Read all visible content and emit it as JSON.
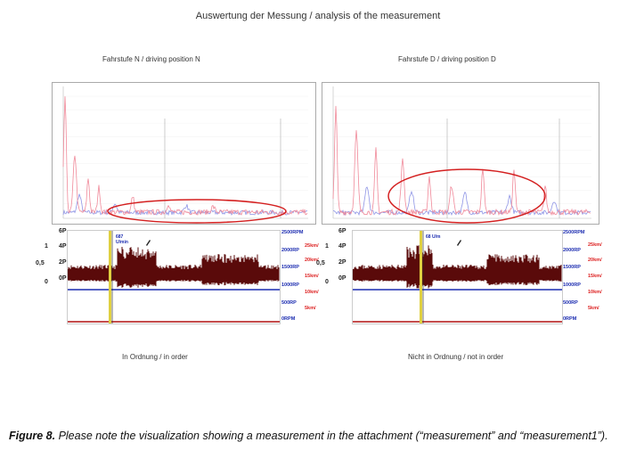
{
  "page_title": "Auswertung der Messung / analysis of the measurement",
  "left": {
    "heading": "Fahrstufe N / driving position N",
    "status": "In Ordnung / in order",
    "marker_text": "687 U/min"
  },
  "right": {
    "heading": "Fahrstufe D / driving position D",
    "status": "Nicht in Ordnung / not in order",
    "marker_text": "68 U/m"
  },
  "left_axis_labels": [
    "6P",
    "4P",
    "2P",
    "0P"
  ],
  "outer_axis_labels": [
    "1",
    "0,5",
    "0"
  ],
  "rpm_labels": [
    "2500RPM",
    "2000RP",
    "1500RP",
    "1000RP",
    "500RP",
    "0RPM"
  ],
  "speed_labels": [
    "25km/",
    "20km/",
    "15km/",
    "10km/",
    "5km/"
  ],
  "caption_figure": "Figure 8.",
  "caption_text": " Please note the visualization showing a measurement in the attachment (“measurement” and “measurement1”).",
  "colors": {
    "spectrum_red": "#f08a9a",
    "spectrum_blue": "#8f95e6",
    "ellipse": "#d42020",
    "waveform": "#5a0a0a",
    "rpm_line": "#1a2bb0",
    "marker": "#e0d040"
  }
}
